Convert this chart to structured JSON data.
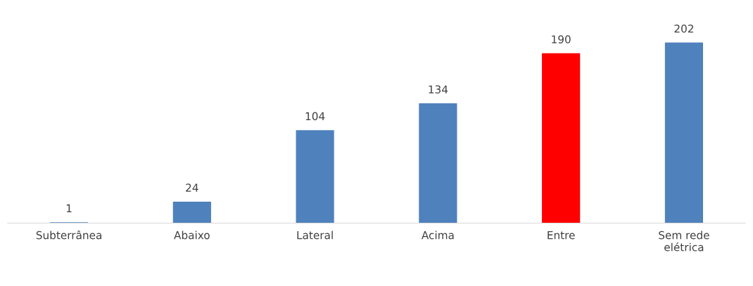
{
  "chart_data": {
    "type": "bar",
    "categories": [
      "Subterrânea",
      "Abaixo",
      "Lateral",
      "Acima",
      "Entre",
      "Sem rede\nelétrica"
    ],
    "values": [
      1,
      24,
      104,
      134,
      190,
      202
    ],
    "colors": [
      "#4f81bd",
      "#4f81bd",
      "#4f81bd",
      "#4f81bd",
      "#ff0000",
      "#4f81bd"
    ],
    "data_labels": true,
    "grid": false,
    "legend": false
  }
}
